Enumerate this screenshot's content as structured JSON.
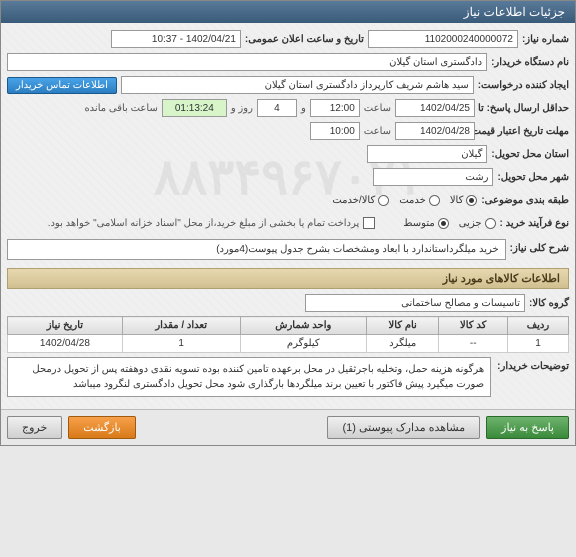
{
  "window": {
    "title": "جزئیات اطلاعات نیاز"
  },
  "watermark": "۸۸۳۴۹۶۷۰۲۱",
  "fields": {
    "request_no": {
      "label": "شماره نیاز:",
      "value": "1102000240000072"
    },
    "announce_dt": {
      "label": "تاریخ و ساعت اعلان عمومی:",
      "value": "1402/04/21 - 10:37"
    },
    "buyer_org": {
      "label": "نام دستگاه خریدار:",
      "value": "دادگستری استان گیلان"
    },
    "creator": {
      "label": "ایجاد کننده درخواست:",
      "value": "سید هاشم شریف کارپرداز دادگستری استان گیلان"
    },
    "contact_btn": "اطلاعات تماس خریدار",
    "deadline": {
      "label": "حداقل ارسال پاسخ: تا تاریخ:",
      "date": "1402/04/25",
      "time_label": "ساعت",
      "time": "12:00",
      "and": "و",
      "days": "4",
      "days_label": "روز و",
      "remaining": "01:13:24",
      "remaining_label": "ساعت باقی مانده"
    },
    "price_valid": {
      "label": "مهلت تاریخ اعتبار قیمت: تا تاریخ:",
      "date": "1402/04/28",
      "time_label": "ساعت",
      "time": "10:00"
    },
    "req_province": {
      "label": "استان محل تحویل:",
      "value": "گیلان"
    },
    "req_city": {
      "label": "شهر محل تحویل:",
      "value": "رشت"
    },
    "category": {
      "label": "طبقه بندی موضوعی:",
      "options": [
        {
          "name": "goods",
          "label": "کالا",
          "selected": true
        },
        {
          "name": "service",
          "label": "خدمت",
          "selected": false
        },
        {
          "name": "goods_service",
          "label": "کالا/خدمت",
          "selected": false
        }
      ]
    },
    "process": {
      "label": "نوع فرآیند خرید :",
      "options": [
        {
          "name": "small",
          "label": "جزیی",
          "selected": false
        },
        {
          "name": "medium",
          "label": "متوسط",
          "selected": true
        }
      ]
    },
    "payment_note": {
      "checkbox": false,
      "text": "پرداخت تمام یا بخشی از مبلغ خرید،از محل \"اسناد خزانه اسلامی\" خواهد بود."
    }
  },
  "summary": {
    "label": "شرح کلی نیاز:",
    "text": "خرید میلگرداستاندارد با ابعاد ومشخصات  بشرح جدول پیوست(4مورد)"
  },
  "items_section": {
    "header": "اطلاعات کالاهای مورد نیاز",
    "group": {
      "label": "گروه کالا:",
      "value": "تاسیسات و مصالح ساختمانی"
    },
    "columns": [
      "ردیف",
      "کد کالا",
      "نام کالا",
      "واحد شمارش",
      "تعداد / مقدار",
      "تاریخ نیاز"
    ],
    "rows": [
      {
        "idx": "1",
        "code": "--",
        "name": "میلگرد",
        "unit": "کیلوگرم",
        "qty": "1",
        "date": "1402/04/28"
      }
    ]
  },
  "buyer_notes": {
    "label": "توضیحات خریدار:",
    "text": "هرگونه هزینه حمل، وتخلیه باجرثقیل در محل برعهده تامین کننده بوده تسویه نقدی دوهفته پس از تحویل درمحل صورت میگیرد پیش فاکتور با تعیین برند میلگردها بارگذاری شود محل تحویل دادگستری لنگرود میباشد"
  },
  "footer": {
    "respond": "پاسخ به نیاز",
    "attachments": "مشاهده مدارک پیوستی (1)",
    "back": "بازگشت",
    "exit": "خروج"
  }
}
